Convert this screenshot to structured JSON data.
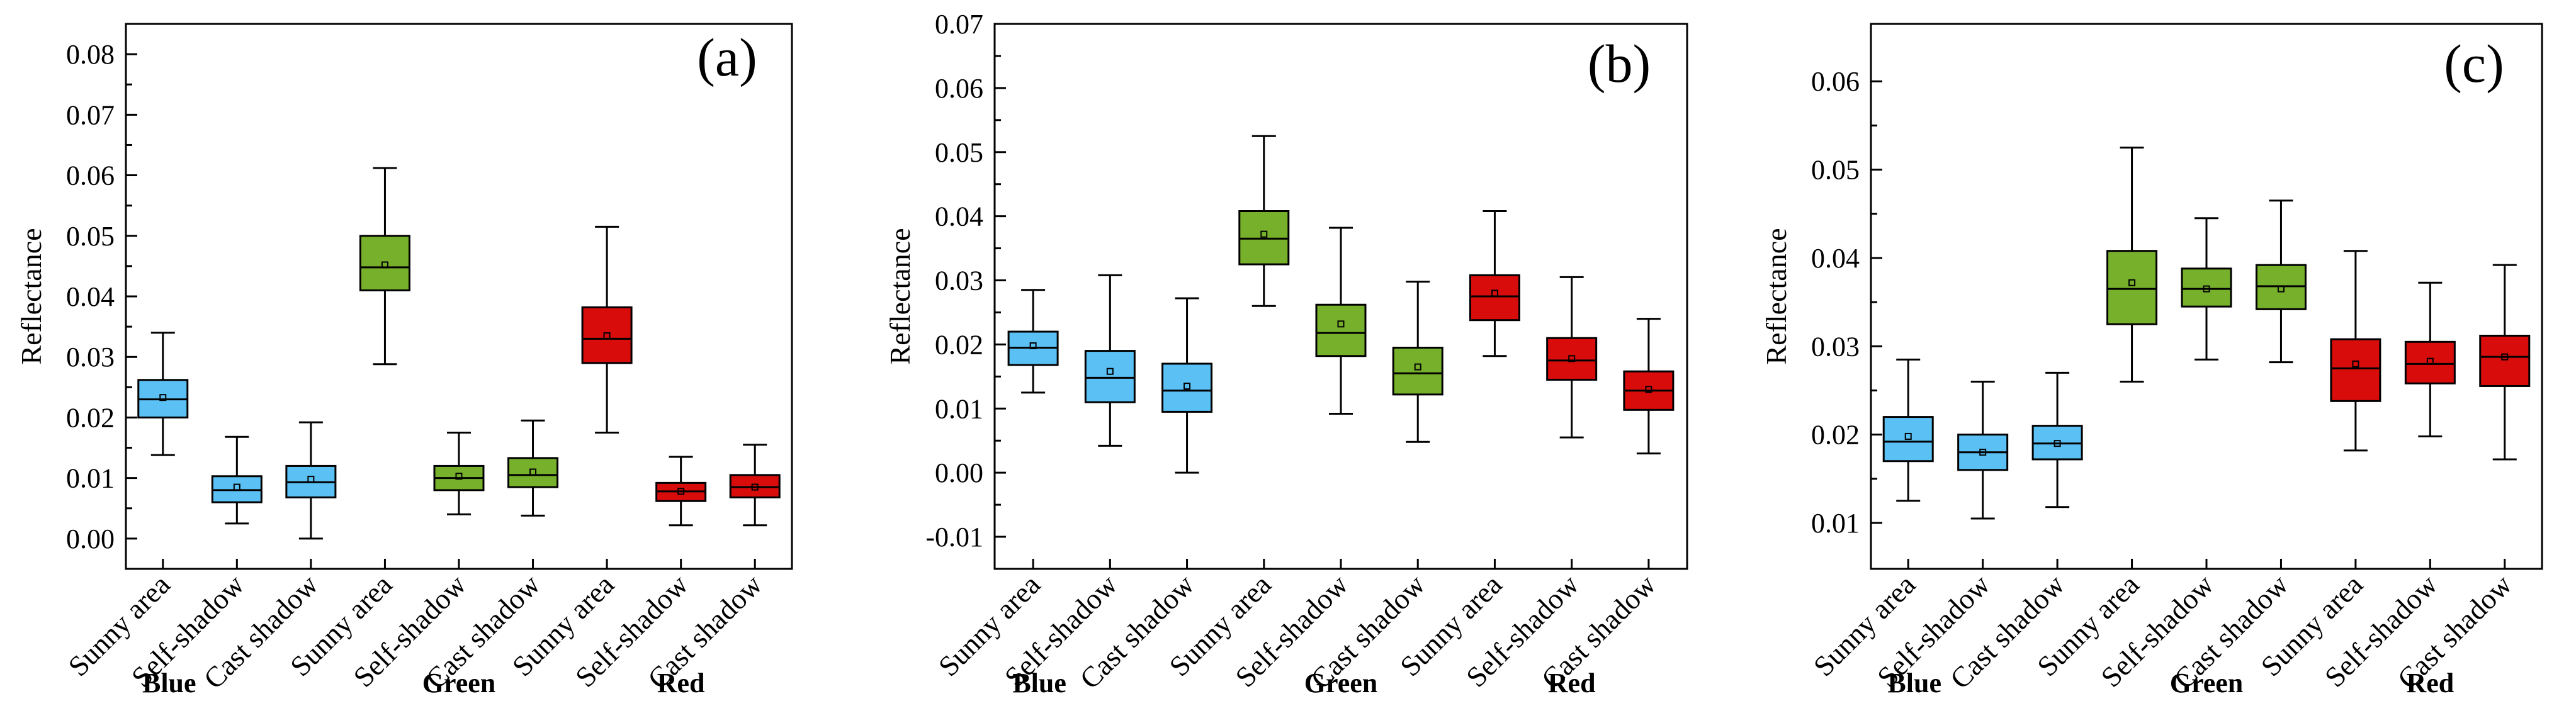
{
  "colors": {
    "Blue": "#5bc1f5",
    "Green": "#77b12b",
    "Red": "#d90c0c",
    "axis": "#000000"
  },
  "chart_data": [
    {
      "type": "box",
      "panel_label": "(a)",
      "ylabel": "Reflectance",
      "ylim": [
        -0.005,
        0.085
      ],
      "yticks": [
        "0.00",
        "0.01",
        "0.02",
        "0.03",
        "0.04",
        "0.05",
        "0.06",
        "0.07",
        "0.08"
      ],
      "groups": [
        {
          "name": "Blue",
          "color_key": "Blue",
          "boxes": [
            {
              "category": "Sunny area",
              "min": 0.0138,
              "q1": 0.02,
              "median": 0.023,
              "q3": 0.0262,
              "max": 0.034,
              "mean": 0.0233
            },
            {
              "category": "Self-shadow",
              "min": 0.0025,
              "q1": 0.006,
              "median": 0.008,
              "q3": 0.0103,
              "max": 0.0168,
              "mean": 0.0085
            },
            {
              "category": "Cast shadow",
              "min": 0.0,
              "q1": 0.0068,
              "median": 0.0093,
              "q3": 0.012,
              "max": 0.0192,
              "mean": 0.0098
            }
          ]
        },
        {
          "name": "Green",
          "color_key": "Green",
          "boxes": [
            {
              "category": "Sunny area",
              "min": 0.0288,
              "q1": 0.041,
              "median": 0.0448,
              "q3": 0.05,
              "max": 0.0612,
              "mean": 0.0452
            },
            {
              "category": "Self-shadow",
              "min": 0.004,
              "q1": 0.008,
              "median": 0.01,
              "q3": 0.012,
              "max": 0.0175,
              "mean": 0.0103
            },
            {
              "category": "Cast shadow",
              "min": 0.0038,
              "q1": 0.0085,
              "median": 0.0105,
              "q3": 0.0133,
              "max": 0.0195,
              "mean": 0.011
            }
          ]
        },
        {
          "name": "Red",
          "color_key": "Red",
          "boxes": [
            {
              "category": "Sunny area",
              "min": 0.0175,
              "q1": 0.029,
              "median": 0.033,
              "q3": 0.0382,
              "max": 0.0515,
              "mean": 0.0335
            },
            {
              "category": "Self-shadow",
              "min": 0.0022,
              "q1": 0.0062,
              "median": 0.0078,
              "q3": 0.0092,
              "max": 0.0135,
              "mean": 0.0078
            },
            {
              "category": "Cast shadow",
              "min": 0.0022,
              "q1": 0.0068,
              "median": 0.0085,
              "q3": 0.0105,
              "max": 0.0155,
              "mean": 0.0085
            }
          ]
        }
      ]
    },
    {
      "type": "box",
      "panel_label": "(b)",
      "ylabel": "Reflectance",
      "ylim": [
        -0.015,
        0.07
      ],
      "yticks": [
        "-0.01",
        "0.00",
        "0.01",
        "0.02",
        "0.03",
        "0.04",
        "0.05",
        "0.06",
        "0.07"
      ],
      "groups": [
        {
          "name": "Blue",
          "color_key": "Blue",
          "boxes": [
            {
              "category": "Sunny area",
              "min": 0.0125,
              "q1": 0.0168,
              "median": 0.0195,
              "q3": 0.022,
              "max": 0.0285,
              "mean": 0.0198
            },
            {
              "category": "Self-shadow",
              "min": 0.0042,
              "q1": 0.011,
              "median": 0.0148,
              "q3": 0.019,
              "max": 0.0308,
              "mean": 0.0158
            },
            {
              "category": "Cast shadow",
              "min": 0.0,
              "q1": 0.0095,
              "median": 0.0128,
              "q3": 0.017,
              "max": 0.0272,
              "mean": 0.0135
            }
          ]
        },
        {
          "name": "Green",
          "color_key": "Green",
          "boxes": [
            {
              "category": "Sunny area",
              "min": 0.026,
              "q1": 0.0325,
              "median": 0.0365,
              "q3": 0.0408,
              "max": 0.0525,
              "mean": 0.0372
            },
            {
              "category": "Self-shadow",
              "min": 0.0092,
              "q1": 0.0182,
              "median": 0.0218,
              "q3": 0.0262,
              "max": 0.0382,
              "mean": 0.0232
            },
            {
              "category": "Cast shadow",
              "min": 0.0048,
              "q1": 0.0122,
              "median": 0.0155,
              "q3": 0.0195,
              "max": 0.0298,
              "mean": 0.0165
            }
          ]
        },
        {
          "name": "Red",
          "color_key": "Red",
          "boxes": [
            {
              "category": "Sunny area",
              "min": 0.0182,
              "q1": 0.0238,
              "median": 0.0275,
              "q3": 0.0308,
              "max": 0.0408,
              "mean": 0.028
            },
            {
              "category": "Self-shadow",
              "min": 0.0055,
              "q1": 0.0145,
              "median": 0.0175,
              "q3": 0.021,
              "max": 0.0305,
              "mean": 0.0178
            },
            {
              "category": "Cast shadow",
              "min": 0.003,
              "q1": 0.0098,
              "median": 0.0128,
              "q3": 0.0158,
              "max": 0.024,
              "mean": 0.013
            }
          ]
        }
      ]
    },
    {
      "type": "box",
      "panel_label": "(c)",
      "ylabel": "Reflectance",
      "ylim": [
        0.0048,
        0.0665
      ],
      "yticks": [
        "0.01",
        "0.02",
        "0.03",
        "0.04",
        "0.05",
        "0.06"
      ],
      "groups": [
        {
          "name": "Blue",
          "color_key": "Blue",
          "boxes": [
            {
              "category": "Sunny area",
              "min": 0.0125,
              "q1": 0.017,
              "median": 0.0192,
              "q3": 0.022,
              "max": 0.0285,
              "mean": 0.0198
            },
            {
              "category": "Self-shadow",
              "min": 0.0105,
              "q1": 0.016,
              "median": 0.018,
              "q3": 0.02,
              "max": 0.026,
              "mean": 0.018
            },
            {
              "category": "Cast shadow",
              "min": 0.0118,
              "q1": 0.0172,
              "median": 0.019,
              "q3": 0.021,
              "max": 0.027,
              "mean": 0.019
            }
          ]
        },
        {
          "name": "Green",
          "color_key": "Green",
          "boxes": [
            {
              "category": "Sunny area",
              "min": 0.026,
              "q1": 0.0325,
              "median": 0.0365,
              "q3": 0.0408,
              "max": 0.0525,
              "mean": 0.0372
            },
            {
              "category": "Self-shadow",
              "min": 0.0285,
              "q1": 0.0345,
              "median": 0.0365,
              "q3": 0.0388,
              "max": 0.0445,
              "mean": 0.0365
            },
            {
              "category": "Cast shadow",
              "min": 0.0282,
              "q1": 0.0342,
              "median": 0.0368,
              "q3": 0.0392,
              "max": 0.0465,
              "mean": 0.0365
            }
          ]
        },
        {
          "name": "Red",
          "color_key": "Red",
          "boxes": [
            {
              "category": "Sunny area",
              "min": 0.0182,
              "q1": 0.0238,
              "median": 0.0275,
              "q3": 0.0308,
              "max": 0.0408,
              "mean": 0.028
            },
            {
              "category": "Self-shadow",
              "min": 0.0198,
              "q1": 0.0258,
              "median": 0.028,
              "q3": 0.0305,
              "max": 0.0372,
              "mean": 0.0283
            },
            {
              "category": "Cast shadow",
              "min": 0.0172,
              "q1": 0.0255,
              "median": 0.0288,
              "q3": 0.0312,
              "max": 0.0392,
              "mean": 0.0288
            }
          ]
        }
      ]
    }
  ]
}
